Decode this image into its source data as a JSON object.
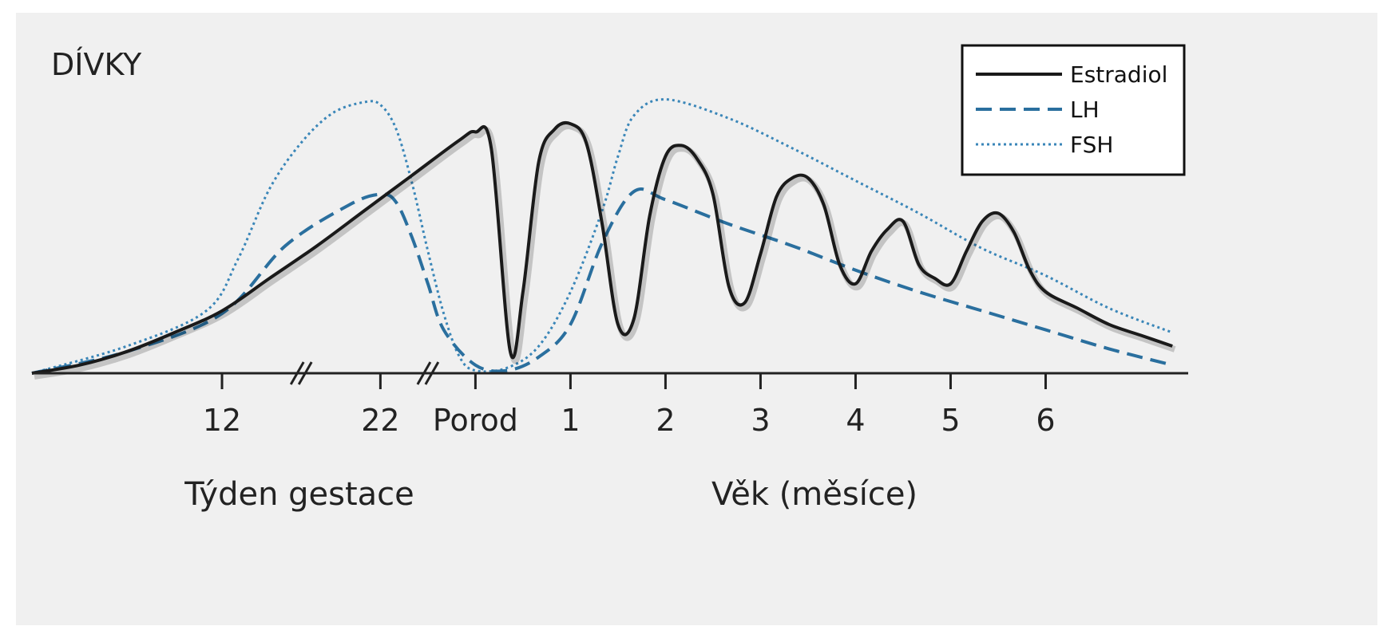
{
  "chart_data": {
    "type": "line",
    "title": "DÍVKY",
    "x_ticks": [
      "12",
      "22",
      "Porod",
      "1",
      "2",
      "3",
      "4",
      "5",
      "6"
    ],
    "x_tick_positions": [
      12,
      22,
      28,
      34,
      40,
      46,
      52,
      58,
      64
    ],
    "x_axis_breaks_between": [
      [
        "12",
        "22"
      ],
      [
        "22",
        "Porod"
      ]
    ],
    "xlabel_left": "Týden gestace",
    "xlabel_right": "Věk (měsíce)",
    "x_range": [
      0,
      73
    ],
    "y_range": [
      0,
      100
    ],
    "y_axis_shown": false,
    "grid": false,
    "legend_position": "top-right",
    "colors": {
      "estradiol": "#1a1a1a",
      "lh": "#2a6f9e",
      "fsh": "#3a86b8",
      "panel": "#f0f0f0"
    },
    "series": [
      {
        "name": "Estradiol",
        "style": "solid",
        "x": [
          0,
          3,
          6,
          9,
          12,
          15,
          18,
          21,
          24,
          27,
          28,
          29,
          30.2,
          31,
          32,
          33,
          34,
          35,
          36,
          37,
          38,
          39,
          40,
          41,
          42,
          43,
          44,
          45,
          46,
          47,
          48,
          49,
          50,
          51,
          52,
          53,
          54,
          55,
          56,
          57,
          58,
          59,
          60,
          61,
          62,
          63,
          64,
          66,
          68,
          70,
          72
        ],
        "y": [
          0,
          3,
          8,
          15,
          23,
          35,
          47,
          60,
          73,
          86,
          89,
          83,
          8,
          30,
          78,
          90,
          92,
          85,
          55,
          18,
          20,
          58,
          80,
          84,
          79,
          66,
          32,
          26,
          44,
          65,
          72,
          72,
          62,
          40,
          33,
          45,
          53,
          56,
          40,
          35,
          33,
          45,
          56,
          59,
          52,
          38,
          30,
          24,
          18,
          14,
          10
        ]
      },
      {
        "name": "LH",
        "style": "dashed",
        "x": [
          0,
          6,
          12,
          16,
          20,
          22,
          23,
          24,
          25,
          26,
          28,
          30,
          32,
          34,
          36,
          38,
          40,
          44,
          48,
          52,
          56,
          60,
          64,
          68,
          72
        ],
        "y": [
          0,
          8,
          22,
          47,
          62,
          66,
          63,
          50,
          33,
          16,
          3,
          1,
          6,
          18,
          48,
          67,
          64,
          55,
          47,
          38,
          30,
          23,
          16,
          9,
          3
        ]
      },
      {
        "name": "FSH",
        "style": "dotted",
        "x": [
          0,
          6,
          11,
          13,
          15,
          17,
          19,
          21,
          22,
          23,
          24,
          25,
          26,
          27,
          28,
          30,
          32,
          34,
          36,
          37,
          38,
          40,
          44,
          48,
          52,
          56,
          60,
          64,
          68,
          72
        ],
        "y": [
          0,
          10,
          23,
          42,
          68,
          85,
          96,
          100,
          99,
          90,
          70,
          45,
          22,
          6,
          1,
          2,
          10,
          30,
          60,
          80,
          95,
          101,
          94,
          83,
          71,
          59,
          46,
          36,
          24,
          15
        ]
      }
    ]
  }
}
